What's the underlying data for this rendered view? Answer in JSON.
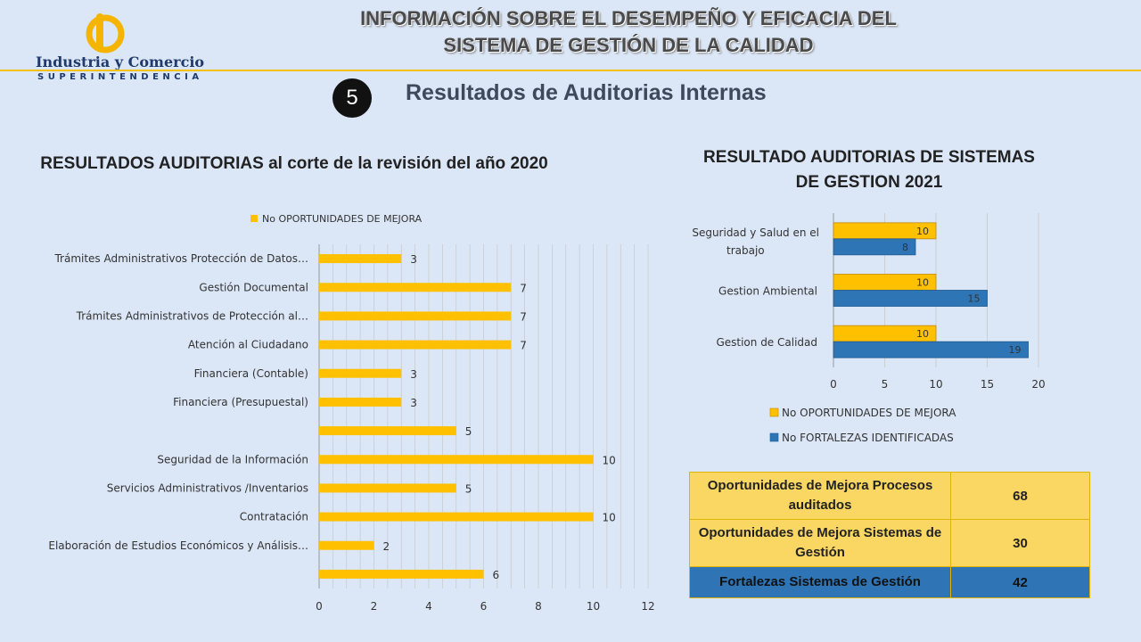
{
  "header": {
    "title_line1": "INFORMACIÓN SOBRE EL DESEMPEÑO Y EFICACIA DEL",
    "title_line2": "SISTEMA DE GESTIÓN DE LA  CALIDAD",
    "logo_name": "Industria y Comercio",
    "logo_sub": "SUPERINTENDENCIA",
    "logo_icon": "sic-logo-icon"
  },
  "section": {
    "number": "5",
    "title": "Resultados de Auditorias Internas"
  },
  "colors": {
    "yellow": "#ffc000",
    "blue": "#2e75b6",
    "header_line": "#f4c20d"
  },
  "chart_data": [
    {
      "type": "bar",
      "orientation": "horizontal",
      "title": "RESULTADOS AUDITORIAS al corte de la revisión del año 2020",
      "legend": "top",
      "grid": true,
      "xlim": [
        0,
        12
      ],
      "xticks": [
        0,
        2,
        4,
        6,
        8,
        10,
        12
      ],
      "categories": [
        "Trámites Administrativos Protección de Datos…",
        "Gestión Documental",
        "Trámites Administrativos de Protección al…",
        "Atención al Ciudadano",
        "Financiera (Contable)",
        "Financiera (Presupuestal)",
        "",
        "Seguridad de la Información",
        "Servicios Administrativos /Inventarios",
        "Contratación",
        "Elaboración de Estudios Económicos y Análisis…",
        ""
      ],
      "series": [
        {
          "name": "No OPORTUNIDADES DE MEJORA",
          "color": "#ffc000",
          "values": [
            3,
            7,
            7,
            7,
            3,
            3,
            5,
            10,
            5,
            10,
            2,
            6
          ]
        }
      ]
    },
    {
      "type": "bar",
      "orientation": "horizontal",
      "title": "RESULTADO AUDITORIAS DE SISTEMAS DE GESTION 2021",
      "legend": "bottom",
      "grid": true,
      "xlim": [
        0,
        20
      ],
      "xticks": [
        0,
        5,
        10,
        15,
        20
      ],
      "categories": [
        "Seguridad y Salud en el trabajo",
        "Gestion Ambiental",
        "Gestion de Calidad"
      ],
      "series": [
        {
          "name": "No OPORTUNIDADES DE MEJORA",
          "color": "#ffc000",
          "values": [
            10,
            10,
            10
          ]
        },
        {
          "name": "No FORTALEZAS IDENTIFICADAS",
          "color": "#2e75b6",
          "values": [
            8,
            15,
            19
          ]
        }
      ]
    }
  ],
  "summary_table": {
    "rows": [
      {
        "label": "Oportunidades  de Mejora Procesos auditados",
        "value": "68"
      },
      {
        "label": "Oportunidades  de Mejora Sistemas de Gestión",
        "value": "30"
      },
      {
        "label": "Fortalezas Sistemas de Gestión",
        "value": "42"
      }
    ]
  }
}
